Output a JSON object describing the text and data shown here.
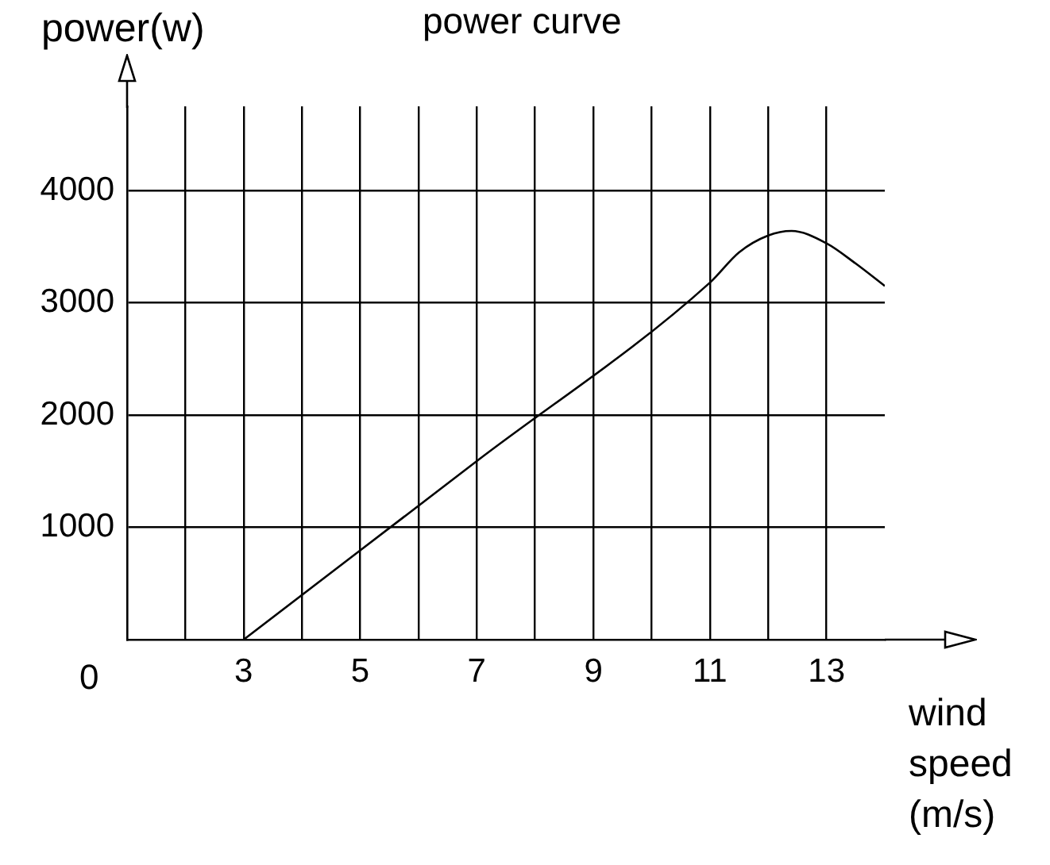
{
  "chart_data": {
    "type": "line",
    "title": "power curve",
    "xlabel": "wind speed (m/s)",
    "ylabel": "power(w)",
    "x": [
      3,
      7,
      11,
      11.5,
      12,
      12.4,
      13,
      13.5,
      14
    ],
    "series": [
      {
        "color": "#000000",
        "values": [
          0,
          1590,
          3180,
          3450,
          3600,
          3640,
          3530,
          3350,
          3150
        ]
      }
    ],
    "xlim": [
      1,
      14
    ],
    "xticks": [
      {
        "value": 2,
        "label": null
      },
      3,
      {
        "value": 4,
        "label": null
      },
      5,
      {
        "value": 6,
        "label": null
      },
      7,
      {
        "value": 8,
        "label": null
      },
      9,
      {
        "value": 10,
        "label": null
      },
      11,
      {
        "value": 12,
        "label": null
      },
      13
    ],
    "ylim": [
      0,
      4750
    ],
    "yticks": [
      1000,
      2000,
      3000,
      4000
    ],
    "annotations": [
      "0"
    ],
    "grid": true,
    "legend": false,
    "marker": "none",
    "line_style": "solid"
  }
}
